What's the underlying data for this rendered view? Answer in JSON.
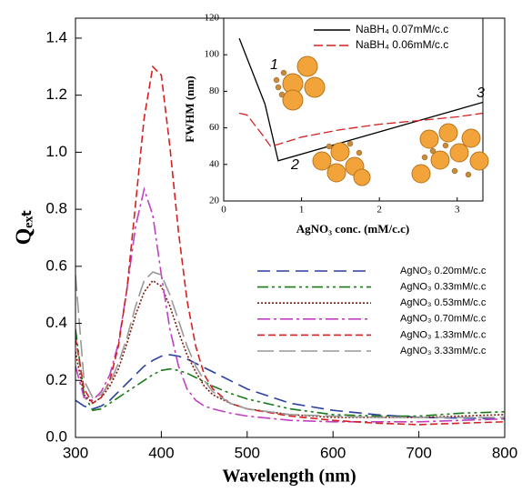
{
  "chart_data": [
    {
      "type": "line",
      "x_label": "Wavelength (nm)",
      "y_label": "Qₑₓₜ",
      "x": [
        300,
        310,
        320,
        330,
        340,
        350,
        360,
        370,
        380,
        390,
        400,
        410,
        420,
        430,
        440,
        450,
        460,
        480,
        500,
        550,
        600,
        650,
        700,
        750,
        800
      ],
      "xlim": [
        300,
        800
      ],
      "xticks": [
        300,
        400,
        500,
        600,
        700,
        800
      ],
      "ylim": [
        0,
        1.47
      ],
      "yticks": [
        {
          "value": 0,
          "label": "0.0"
        },
        0.2,
        0.4,
        0.6,
        0.8,
        {
          "value": 1,
          "label": "1.0"
        },
        1.2,
        1.4
      ],
      "grid": false,
      "legend": "lower right",
      "series": [
        {
          "name": "AgNO₃ 0.20mM/c.c",
          "color": "#2b3fa0",
          "dash": "14,7",
          "values": [
            0.13,
            0.11,
            0.1,
            0.11,
            0.13,
            0.16,
            0.19,
            0.22,
            0.25,
            0.27,
            0.285,
            0.29,
            0.285,
            0.275,
            0.26,
            0.245,
            0.23,
            0.2,
            0.17,
            0.12,
            0.095,
            0.08,
            0.07,
            0.068,
            0.065
          ]
        },
        {
          "name": "AgNO₃ 0.33mM/c.c",
          "color": "#1a7a1a",
          "dash": "12,4,3,4,3,4",
          "values": [
            0.38,
            0.15,
            0.095,
            0.1,
            0.12,
            0.14,
            0.16,
            0.18,
            0.2,
            0.22,
            0.235,
            0.24,
            0.235,
            0.225,
            0.21,
            0.195,
            0.18,
            0.155,
            0.135,
            0.1,
            0.08,
            0.075,
            0.075,
            0.085,
            0.09
          ]
        },
        {
          "name": "AgNO₃ 0.53mM/c.c",
          "color": "#7a1a0a",
          "dash": "2,2",
          "values": [
            0.3,
            0.15,
            0.12,
            0.14,
            0.18,
            0.24,
            0.33,
            0.43,
            0.51,
            0.55,
            0.53,
            0.46,
            0.37,
            0.29,
            0.23,
            0.18,
            0.15,
            0.12,
            0.1,
            0.08,
            0.07,
            0.07,
            0.07,
            0.075,
            0.08
          ]
        },
        {
          "name": "AgNO₃ 0.70mM/c.c",
          "color": "#c040c0",
          "dash": "14,4,3,4",
          "values": [
            0.25,
            0.14,
            0.13,
            0.16,
            0.22,
            0.33,
            0.52,
            0.74,
            0.87,
            0.78,
            0.57,
            0.38,
            0.25,
            0.17,
            0.13,
            0.11,
            0.1,
            0.085,
            0.075,
            0.06,
            0.055,
            0.055,
            0.055,
            0.06,
            0.065
          ]
        },
        {
          "name": "AgNO₃ 1.33mM/c.c",
          "color": "#d42020",
          "dash": "8,4",
          "values": [
            0.35,
            0.17,
            0.12,
            0.14,
            0.2,
            0.32,
            0.52,
            0.82,
            1.12,
            1.3,
            1.27,
            1.02,
            0.72,
            0.48,
            0.32,
            0.22,
            0.17,
            0.12,
            0.1,
            0.075,
            0.06,
            0.05,
            0.045,
            0.05,
            0.055
          ]
        },
        {
          "name": "AgNO₃ 3.33mM/c.c",
          "color": "#999999",
          "dash": "18,6",
          "values": [
            0.57,
            0.2,
            0.14,
            0.15,
            0.19,
            0.26,
            0.35,
            0.46,
            0.55,
            0.58,
            0.57,
            0.5,
            0.41,
            0.32,
            0.25,
            0.2,
            0.16,
            0.12,
            0.1,
            0.08,
            0.075,
            0.07,
            0.07,
            0.07,
            0.07
          ]
        }
      ]
    },
    {
      "type": "line",
      "x_label": "AgNO₃ conc. (mM/c.c)",
      "y_label": "FWHM (nm)",
      "xlim": [
        0,
        3.33
      ],
      "xticks": [
        0,
        1,
        2,
        3
      ],
      "ylim": [
        20,
        120
      ],
      "yticks": [
        20,
        40,
        60,
        80,
        100,
        120
      ],
      "grid": false,
      "legend": "upper right",
      "annotations": [
        "1",
        "2",
        "3"
      ],
      "series": [
        {
          "name": "NaBH₄ 0.07mM/c.c",
          "color": "#000000",
          "dash": "none",
          "x": [
            0.2,
            0.53,
            0.7,
            3.33
          ],
          "values": [
            109,
            73,
            42,
            74
          ]
        },
        {
          "name": "NaBH₄ 0.06mM/c.c",
          "color": "#d42020",
          "dash": "10,4",
          "x": [
            0.2,
            0.3,
            0.5,
            0.6,
            0.7,
            1.0,
            1.5,
            2.0,
            2.5,
            3.0,
            3.33
          ],
          "values": [
            68,
            67,
            56,
            50,
            51,
            55,
            59,
            62,
            64,
            66,
            68
          ]
        }
      ]
    }
  ]
}
